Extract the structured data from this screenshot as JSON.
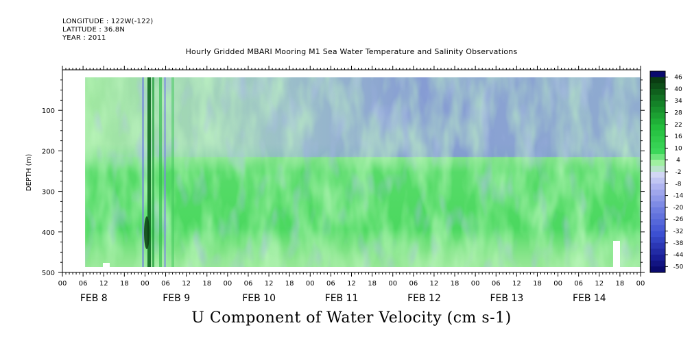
{
  "header": {
    "longitude": "LONGITUDE : 122W(-122)",
    "latitude": "LATITUDE : 36.8N",
    "year": "YEAR : 2011"
  },
  "chart_data": {
    "type": "heatmap",
    "title": "Hourly Gridded MBARI Mooring M1 Sea Water Temperature and Salinity Observations",
    "subtitle": "U Component of Water Velocity (cm s-1)",
    "ylabel": "DEPTH (m)",
    "xlabel": "",
    "ylim": [
      500,
      0
    ],
    "y_ticks": [
      100,
      200,
      300,
      400,
      500
    ],
    "x_hour_labels": [
      "00",
      "06",
      "12",
      "18",
      "00",
      "06",
      "12",
      "18",
      "00",
      "06",
      "12",
      "18",
      "00",
      "06",
      "12",
      "18",
      "00",
      "06",
      "12",
      "18",
      "00",
      "06",
      "12",
      "18",
      "00",
      "06",
      "12",
      "18",
      "00"
    ],
    "x_day_labels": [
      "FEB  8",
      "FEB  9",
      "FEB 10",
      "FEB 11",
      "FEB 12",
      "FEB 13",
      "FEB 14"
    ],
    "colorbar_levels": [
      46,
      40,
      34,
      28,
      22,
      16,
      10,
      4,
      -2,
      -8,
      -14,
      -20,
      -26,
      -32,
      -38,
      -44,
      -50
    ],
    "colors": {
      "strong_positive": "#0a3d12",
      "positive": "#2fd34a",
      "weak_positive": "#a8f0a8",
      "weak_negative": "#b3b3f0",
      "negative": "#5a6ad8",
      "strong_negative": "#0a0a6e"
    }
  }
}
